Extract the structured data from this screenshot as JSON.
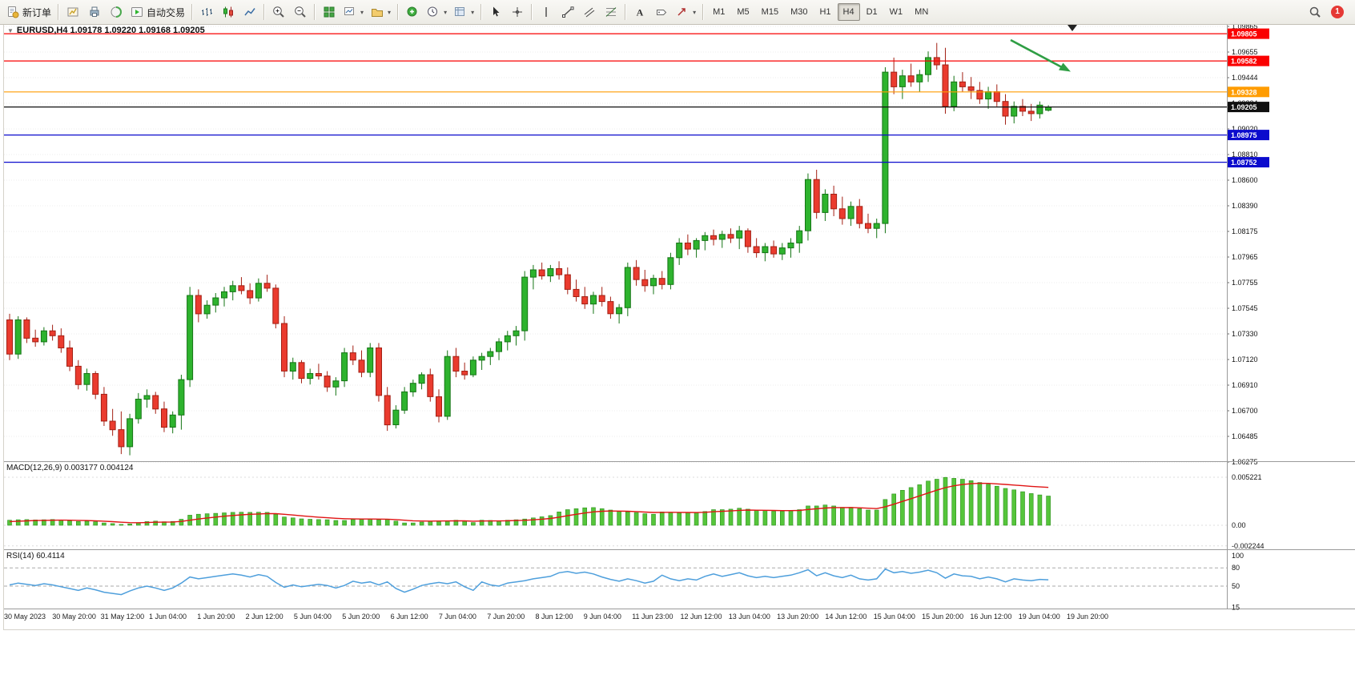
{
  "toolbar": {
    "new_order_label": "新订单",
    "autotrading_label": "自动交易",
    "notification_count": "1",
    "timeframes": [
      {
        "label": "M1",
        "active": false
      },
      {
        "label": "M5",
        "active": false
      },
      {
        "label": "M15",
        "active": false
      },
      {
        "label": "M30",
        "active": false
      },
      {
        "label": "H1",
        "active": false
      },
      {
        "label": "H4",
        "active": true
      },
      {
        "label": "D1",
        "active": false
      },
      {
        "label": "W1",
        "active": false
      },
      {
        "label": "MN",
        "active": false
      }
    ],
    "icons": [
      "new-order-icon",
      "charts-icon",
      "print-icon",
      "data-window-icon",
      "autotrading-icon",
      "bar-chart-icon",
      "candlestick-chart-icon",
      "line-chart-icon",
      "zoom-in-icon",
      "zoom-out-icon",
      "tile-windows-icon",
      "new-chart-icon",
      "profiles-icon",
      "indicators-icon",
      "periods-icon",
      "templates-icon",
      "cursor-icon",
      "crosshair-icon",
      "vertical-line-icon",
      "trendline-icon",
      "equidistant-channel-icon",
      "fibonacci-icon",
      "text-icon",
      "text-label-icon",
      "arrows-icon",
      "search-icon"
    ]
  },
  "chart": {
    "title": "EURUSD,H4 1.09178 1.09220 1.09168 1.09205",
    "symbol": "EURUSD",
    "period": "H4",
    "open": "1.09178",
    "high": "1.09220",
    "low": "1.09168",
    "close": "1.09205",
    "collapse_marker": "▼"
  },
  "indicators": {
    "macd_label": "MACD(12,26,9) 0.003177 0.004124",
    "macd_scale": [
      "0.005221",
      "0.00",
      "-0.002244"
    ],
    "rsi_label": "RSI(14) 60.4114",
    "rsi_scale": [
      "100",
      "80",
      "50",
      "15"
    ]
  },
  "colors": {
    "up": "#2eb32e",
    "up_border": "#157515",
    "down": "#ea3b2e",
    "down_border": "#a32014",
    "macd_bar": "#55c53a",
    "macd_bar_border": "#2e8f1e",
    "macd_signal": "#e01414",
    "rsi_line": "#4e9fdc",
    "arrow": "#2f9e44",
    "grid": "#ededed"
  },
  "chart_data": {
    "type": "candlestick",
    "symbol": "EURUSD",
    "timeframe": "H4",
    "ylim": [
      1.06275,
      1.09865
    ],
    "price_axis_labels": [
      "1.09865",
      "1.09655",
      "1.09444",
      "1.09234",
      "1.09020",
      "1.08810",
      "1.08600",
      "1.08390",
      "1.08175",
      "1.07965",
      "1.07755",
      "1.07545",
      "1.07330",
      "1.07120",
      "1.06910",
      "1.06700",
      "1.06485",
      "1.06275"
    ],
    "time_axis_labels": [
      "30 May 2023",
      "30 May 20:00",
      "31 May 12:00",
      "1 Jun 04:00",
      "1 Jun 20:00",
      "2 Jun 12:00",
      "5 Jun 04:00",
      "5 Jun 20:00",
      "6 Jun 12:00",
      "7 Jun 04:00",
      "7 Jun 20:00",
      "8 Jun 12:00",
      "9 Jun 04:00",
      "11 Jun 23:00",
      "12 Jun 12:00",
      "13 Jun 04:00",
      "13 Jun 20:00",
      "14 Jun 12:00",
      "15 Jun 04:00",
      "15 Jun 20:00",
      "16 Jun 12:00",
      "19 Jun 04:00",
      "19 Jun 20:00"
    ],
    "hlines": [
      {
        "price": 1.09805,
        "label": "1.09805",
        "color": "#fa0000",
        "current": false
      },
      {
        "price": 1.09582,
        "label": "1.09582",
        "color": "#fa0000",
        "current": false
      },
      {
        "price": 1.09328,
        "label": "1.09328",
        "color": "#ff9c00",
        "current": false
      },
      {
        "price": 1.09205,
        "label": "1.09205",
        "color": "#101010",
        "current": true
      },
      {
        "price": 1.08975,
        "label": "1.08975",
        "color": "#0b0bcd",
        "current": false
      },
      {
        "price": 1.08752,
        "label": "1.08752",
        "color": "#0b0bcd",
        "current": false
      }
    ],
    "candles": [
      [
        1.0746,
        1.0751,
        1.0713,
        1.0718
      ],
      [
        1.0718,
        1.0749,
        1.0714,
        1.0746
      ],
      [
        1.0746,
        1.0748,
        1.0727,
        1.0731
      ],
      [
        1.0731,
        1.0738,
        1.0724,
        1.0728
      ],
      [
        1.0728,
        1.074,
        1.0725,
        1.0737
      ],
      [
        1.0737,
        1.0742,
        1.0729,
        1.0733
      ],
      [
        1.0733,
        1.0739,
        1.0719,
        1.0723
      ],
      [
        1.0723,
        1.0729,
        1.0704,
        1.0708
      ],
      [
        1.0708,
        1.0713,
        1.0689,
        1.0693
      ],
      [
        1.0693,
        1.0706,
        1.0688,
        1.0702
      ],
      [
        1.0702,
        1.0704,
        1.0681,
        1.0685
      ],
      [
        1.0685,
        1.0691,
        1.0659,
        1.0663
      ],
      [
        1.0663,
        1.0673,
        1.0651,
        1.0656
      ],
      [
        1.0656,
        1.0671,
        1.0636,
        1.0642
      ],
      [
        1.0642,
        1.0669,
        1.0635,
        1.0665
      ],
      [
        1.0665,
        1.0686,
        1.0661,
        1.0681
      ],
      [
        1.0681,
        1.0689,
        1.0674,
        1.0684
      ],
      [
        1.0684,
        1.0687,
        1.0669,
        1.0673
      ],
      [
        1.0673,
        1.0679,
        1.0654,
        1.0658
      ],
      [
        1.0658,
        1.0671,
        1.0653,
        1.0668
      ],
      [
        1.0668,
        1.0701,
        1.0656,
        1.0697
      ],
      [
        1.0697,
        1.0773,
        1.0691,
        1.0766
      ],
      [
        1.0766,
        1.0771,
        1.0744,
        1.0751
      ],
      [
        1.0751,
        1.0762,
        1.0747,
        1.0758
      ],
      [
        1.0758,
        1.0768,
        1.0752,
        1.0764
      ],
      [
        1.0764,
        1.0773,
        1.0757,
        1.0769
      ],
      [
        1.0769,
        1.0778,
        1.0762,
        1.0774
      ],
      [
        1.0774,
        1.0781,
        1.0767,
        1.077
      ],
      [
        1.077,
        1.0776,
        1.0759,
        1.0764
      ],
      [
        1.0764,
        1.078,
        1.0761,
        1.0776
      ],
      [
        1.0776,
        1.0783,
        1.0769,
        1.0772
      ],
      [
        1.0772,
        1.0775,
        1.0739,
        1.0743
      ],
      [
        1.0743,
        1.0749,
        1.0699,
        1.0704
      ],
      [
        1.0704,
        1.0715,
        1.0697,
        1.0711
      ],
      [
        1.0711,
        1.0713,
        1.0694,
        1.0698
      ],
      [
        1.0698,
        1.0706,
        1.0693,
        1.0702
      ],
      [
        1.0702,
        1.071,
        1.0697,
        1.07
      ],
      [
        1.07,
        1.0704,
        1.0687,
        1.0691
      ],
      [
        1.0691,
        1.0699,
        1.0684,
        1.0696
      ],
      [
        1.0696,
        1.0723,
        1.0691,
        1.0719
      ],
      [
        1.0719,
        1.0725,
        1.0709,
        1.0713
      ],
      [
        1.0713,
        1.0721,
        1.0699,
        1.0703
      ],
      [
        1.0703,
        1.0727,
        1.0699,
        1.0723
      ],
      [
        1.0723,
        1.0727,
        1.0679,
        1.0684
      ],
      [
        1.0684,
        1.0691,
        1.0655,
        1.066
      ],
      [
        1.066,
        1.0676,
        1.0657,
        1.0672
      ],
      [
        1.0672,
        1.0691,
        1.0669,
        1.0687
      ],
      [
        1.0687,
        1.0697,
        1.0683,
        1.0694
      ],
      [
        1.0694,
        1.0703,
        1.0689,
        1.0701
      ],
      [
        1.0701,
        1.0706,
        1.0679,
        1.0683
      ],
      [
        1.0683,
        1.0689,
        1.0662,
        1.0667
      ],
      [
        1.0667,
        1.0721,
        1.0664,
        1.0716
      ],
      [
        1.0716,
        1.0723,
        1.0699,
        1.0704
      ],
      [
        1.0704,
        1.0711,
        1.0697,
        1.0701
      ],
      [
        1.0701,
        1.0716,
        1.0699,
        1.0713
      ],
      [
        1.0713,
        1.0719,
        1.0705,
        1.0716
      ],
      [
        1.0716,
        1.0723,
        1.0709,
        1.072
      ],
      [
        1.072,
        1.0731,
        1.0713,
        1.0728
      ],
      [
        1.0728,
        1.0737,
        1.0721,
        1.0733
      ],
      [
        1.0733,
        1.0741,
        1.0725,
        1.0737
      ],
      [
        1.0737,
        1.0786,
        1.0729,
        1.0781
      ],
      [
        1.0781,
        1.0791,
        1.0771,
        1.0787
      ],
      [
        1.0787,
        1.0793,
        1.0779,
        1.0782
      ],
      [
        1.0782,
        1.0791,
        1.0777,
        1.0788
      ],
      [
        1.0788,
        1.0794,
        1.0779,
        1.0783
      ],
      [
        1.0783,
        1.0789,
        1.0767,
        1.0771
      ],
      [
        1.0771,
        1.0779,
        1.0761,
        1.0765
      ],
      [
        1.0765,
        1.0773,
        1.0755,
        1.0759
      ],
      [
        1.0759,
        1.0769,
        1.0751,
        1.0766
      ],
      [
        1.0766,
        1.0773,
        1.0757,
        1.0761
      ],
      [
        1.0761,
        1.0765,
        1.0747,
        1.0751
      ],
      [
        1.0751,
        1.0759,
        1.0743,
        1.0756
      ],
      [
        1.0756,
        1.0793,
        1.0749,
        1.0789
      ],
      [
        1.0789,
        1.0795,
        1.0774,
        1.0779
      ],
      [
        1.0779,
        1.0787,
        1.0769,
        1.0774
      ],
      [
        1.0774,
        1.0783,
        1.0767,
        1.078
      ],
      [
        1.078,
        1.0786,
        1.0771,
        1.0775
      ],
      [
        1.0775,
        1.0801,
        1.0771,
        1.0797
      ],
      [
        1.0797,
        1.0813,
        1.0791,
        1.0809
      ],
      [
        1.0809,
        1.0816,
        1.0799,
        1.0804
      ],
      [
        1.0804,
        1.0813,
        1.0797,
        1.0811
      ],
      [
        1.0811,
        1.0818,
        1.0803,
        1.0815
      ],
      [
        1.0815,
        1.082,
        1.0807,
        1.0812
      ],
      [
        1.0812,
        1.0819,
        1.0805,
        1.0816
      ],
      [
        1.0816,
        1.0821,
        1.0809,
        1.0813
      ],
      [
        1.0813,
        1.0823,
        1.0804,
        1.0819
      ],
      [
        1.0819,
        1.0821,
        1.0801,
        1.0806
      ],
      [
        1.0806,
        1.0813,
        1.0797,
        1.0801
      ],
      [
        1.0801,
        1.0809,
        1.0794,
        1.0806
      ],
      [
        1.0806,
        1.0811,
        1.0797,
        1.08
      ],
      [
        1.08,
        1.0809,
        1.0795,
        1.0805
      ],
      [
        1.0805,
        1.0813,
        1.0797,
        1.0809
      ],
      [
        1.0809,
        1.0823,
        1.0801,
        1.0819
      ],
      [
        1.0819,
        1.0866,
        1.0811,
        1.0861
      ],
      [
        1.0861,
        1.0869,
        1.0829,
        1.0834
      ],
      [
        1.0834,
        1.0853,
        1.0827,
        1.0849
      ],
      [
        1.0849,
        1.0856,
        1.0831,
        1.0837
      ],
      [
        1.0837,
        1.0847,
        1.0824,
        1.0829
      ],
      [
        1.0829,
        1.0843,
        1.0823,
        1.0839
      ],
      [
        1.0839,
        1.0845,
        1.0821,
        1.0825
      ],
      [
        1.0825,
        1.0833,
        1.0817,
        1.0821
      ],
      [
        1.0821,
        1.0829,
        1.0813,
        1.0825
      ],
      [
        1.0825,
        1.0953,
        1.0817,
        1.0949
      ],
      [
        1.0949,
        1.0961,
        1.0931,
        1.0937
      ],
      [
        1.0937,
        1.0951,
        1.0927,
        1.0946
      ],
      [
        1.0946,
        1.0956,
        1.0937,
        1.0941
      ],
      [
        1.0941,
        1.0951,
        1.0933,
        1.0947
      ],
      [
        1.0947,
        1.0966,
        1.0941,
        1.0961
      ],
      [
        1.0961,
        1.0973,
        1.0951,
        1.0955
      ],
      [
        1.0955,
        1.0969,
        1.0915,
        1.0921
      ],
      [
        1.0921,
        1.0946,
        1.0917,
        1.0941
      ],
      [
        1.0941,
        1.0949,
        1.0933,
        1.0937
      ],
      [
        1.0937,
        1.0945,
        1.0927,
        1.0934
      ],
      [
        1.0934,
        1.0941,
        1.0923,
        1.0927
      ],
      [
        1.0927,
        1.0937,
        1.0919,
        1.0933
      ],
      [
        1.0933,
        1.0939,
        1.0921,
        1.0925
      ],
      [
        1.0925,
        1.0931,
        1.0906,
        1.0913
      ],
      [
        1.0913,
        1.0925,
        1.0907,
        1.0921
      ],
      [
        1.0921,
        1.0927,
        1.0913,
        1.0917
      ],
      [
        1.0917,
        1.0923,
        1.0909,
        1.0915
      ],
      [
        1.0915,
        1.0925,
        1.0911,
        1.0922
      ],
      [
        1.09178,
        1.0922,
        1.09168,
        1.09205
      ]
    ],
    "macd": {
      "unit": 0.001,
      "final_values": [
        0.003177,
        0.004124
      ],
      "histogram": [
        0.55,
        0.6,
        0.62,
        0.58,
        0.6,
        0.63,
        0.58,
        0.5,
        0.42,
        0.45,
        0.38,
        0.25,
        0.18,
        0.1,
        0.15,
        0.28,
        0.4,
        0.45,
        0.38,
        0.42,
        0.65,
        1.1,
        1.2,
        1.25,
        1.3,
        1.35,
        1.4,
        1.42,
        1.4,
        1.42,
        1.4,
        1.2,
        0.9,
        0.8,
        0.7,
        0.65,
        0.62,
        0.6,
        0.52,
        0.52,
        0.62,
        0.65,
        0.68,
        0.6,
        0.65,
        0.45,
        0.25,
        0.25,
        0.35,
        0.42,
        0.48,
        0.5,
        0.55,
        0.45,
        0.3,
        0.55,
        0.52,
        0.48,
        0.55,
        0.6,
        0.68,
        0.8,
        0.92,
        1.05,
        1.45,
        1.7,
        1.8,
        1.9,
        1.92,
        1.8,
        1.65,
        1.5,
        1.45,
        1.38,
        1.25,
        1.2,
        1.45,
        1.42,
        1.35,
        1.38,
        1.35,
        1.5,
        1.7,
        1.7,
        1.75,
        1.85,
        1.75,
        1.62,
        1.6,
        1.52,
        1.52,
        1.58,
        1.7,
        2.1,
        2.1,
        2.2,
        2.1,
        1.95,
        1.95,
        1.8,
        1.65,
        1.65,
        2.8,
        3.4,
        3.8,
        4.1,
        4.4,
        4.8,
        5.0,
        5.2,
        5.1,
        5.0,
        4.85,
        4.65,
        4.45,
        4.25,
        4.0,
        3.85,
        3.65,
        3.45,
        3.3,
        3.18
      ],
      "signal": [
        0.4,
        0.44,
        0.48,
        0.51,
        0.53,
        0.55,
        0.56,
        0.55,
        0.53,
        0.51,
        0.48,
        0.44,
        0.39,
        0.33,
        0.29,
        0.28,
        0.3,
        0.33,
        0.34,
        0.36,
        0.42,
        0.55,
        0.68,
        0.79,
        0.89,
        0.98,
        1.06,
        1.13,
        1.19,
        1.23,
        1.27,
        1.26,
        1.19,
        1.11,
        1.03,
        0.95,
        0.88,
        0.82,
        0.76,
        0.71,
        0.69,
        0.68,
        0.68,
        0.67,
        0.66,
        0.62,
        0.55,
        0.49,
        0.46,
        0.45,
        0.46,
        0.47,
        0.48,
        0.48,
        0.44,
        0.46,
        0.47,
        0.47,
        0.49,
        0.51,
        0.54,
        0.59,
        0.66,
        0.74,
        0.88,
        1.04,
        1.19,
        1.33,
        1.45,
        1.52,
        1.55,
        1.54,
        1.52,
        1.49,
        1.44,
        1.39,
        1.4,
        1.41,
        1.4,
        1.39,
        1.38,
        1.41,
        1.47,
        1.51,
        1.56,
        1.62,
        1.65,
        1.64,
        1.63,
        1.61,
        1.59,
        1.59,
        1.61,
        1.71,
        1.79,
        1.87,
        1.92,
        1.92,
        1.93,
        1.9,
        1.85,
        1.81,
        2.01,
        2.29,
        2.59,
        2.89,
        3.19,
        3.51,
        3.81,
        4.09,
        4.29,
        4.43,
        4.52,
        4.56,
        4.55,
        4.5,
        4.44,
        4.37,
        4.3,
        4.23,
        4.17,
        4.12
      ]
    },
    "rsi": {
      "final_value": 60.4114,
      "values": [
        52,
        55,
        53,
        51,
        54,
        52,
        49,
        46,
        43,
        47,
        44,
        40,
        38,
        36,
        42,
        47,
        50,
        47,
        43,
        47,
        55,
        65,
        62,
        64,
        66,
        68,
        70,
        68,
        65,
        69,
        66,
        56,
        48,
        52,
        49,
        51,
        53,
        51,
        47,
        51,
        58,
        55,
        57,
        52,
        57,
        46,
        40,
        45,
        51,
        54,
        56,
        54,
        57,
        49,
        43,
        57,
        52,
        50,
        55,
        57,
        59,
        62,
        64,
        66,
        72,
        74,
        71,
        73,
        70,
        65,
        61,
        58,
        62,
        59,
        55,
        58,
        68,
        62,
        59,
        62,
        60,
        66,
        70,
        66,
        69,
        72,
        67,
        64,
        66,
        64,
        66,
        68,
        72,
        77,
        67,
        72,
        67,
        64,
        68,
        62,
        60,
        62,
        78,
        72,
        74,
        71,
        73,
        76,
        72,
        63,
        70,
        67,
        66,
        62,
        65,
        62,
        57,
        62,
        60,
        59,
        61,
        60.4
      ]
    }
  }
}
